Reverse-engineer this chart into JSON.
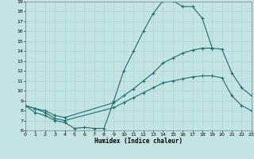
{
  "xlabel": "Humidex (Indice chaleur)",
  "xlim": [
    0,
    23
  ],
  "ylim": [
    6,
    19
  ],
  "xticks": [
    0,
    1,
    2,
    3,
    4,
    5,
    6,
    7,
    8,
    9,
    10,
    11,
    12,
    13,
    14,
    15,
    16,
    17,
    18,
    19,
    20,
    21,
    22,
    23
  ],
  "yticks": [
    6,
    7,
    8,
    9,
    10,
    11,
    12,
    13,
    14,
    15,
    16,
    17,
    18,
    19
  ],
  "bg_color": "#c4e4e4",
  "line_color": "#1a6e6e",
  "grid_color": "#a8d0d0",
  "curve1_x": [
    0,
    1,
    2,
    3,
    4,
    5,
    6,
    7,
    8,
    9,
    10,
    11,
    12,
    13,
    14,
    15,
    16,
    17,
    18,
    19
  ],
  "curve1_y": [
    8.5,
    7.8,
    7.5,
    7.0,
    6.8,
    6.2,
    6.3,
    6.2,
    6.2,
    9.0,
    12.0,
    14.0,
    16.0,
    17.8,
    19.1,
    19.1,
    18.5,
    18.5,
    17.3,
    14.3
  ],
  "curve2_x": [
    0,
    1,
    2,
    3,
    4,
    9,
    10,
    11,
    12,
    13,
    14,
    15,
    16,
    17,
    18,
    19,
    20,
    21,
    22,
    23
  ],
  "curve2_y": [
    8.5,
    8.2,
    8.0,
    7.5,
    7.3,
    8.8,
    9.5,
    10.2,
    11.0,
    11.8,
    12.8,
    13.3,
    13.8,
    14.1,
    14.3,
    14.3,
    14.2,
    11.8,
    10.3,
    9.5
  ],
  "curve3_x": [
    0,
    1,
    2,
    3,
    4,
    9,
    10,
    11,
    12,
    13,
    14,
    15,
    16,
    17,
    18,
    19,
    20,
    21,
    22,
    23
  ],
  "curve3_y": [
    8.5,
    8.2,
    7.8,
    7.2,
    7.0,
    8.3,
    8.8,
    9.3,
    9.8,
    10.3,
    10.8,
    11.0,
    11.2,
    11.4,
    11.5,
    11.5,
    11.3,
    9.5,
    8.5,
    8.0
  ]
}
